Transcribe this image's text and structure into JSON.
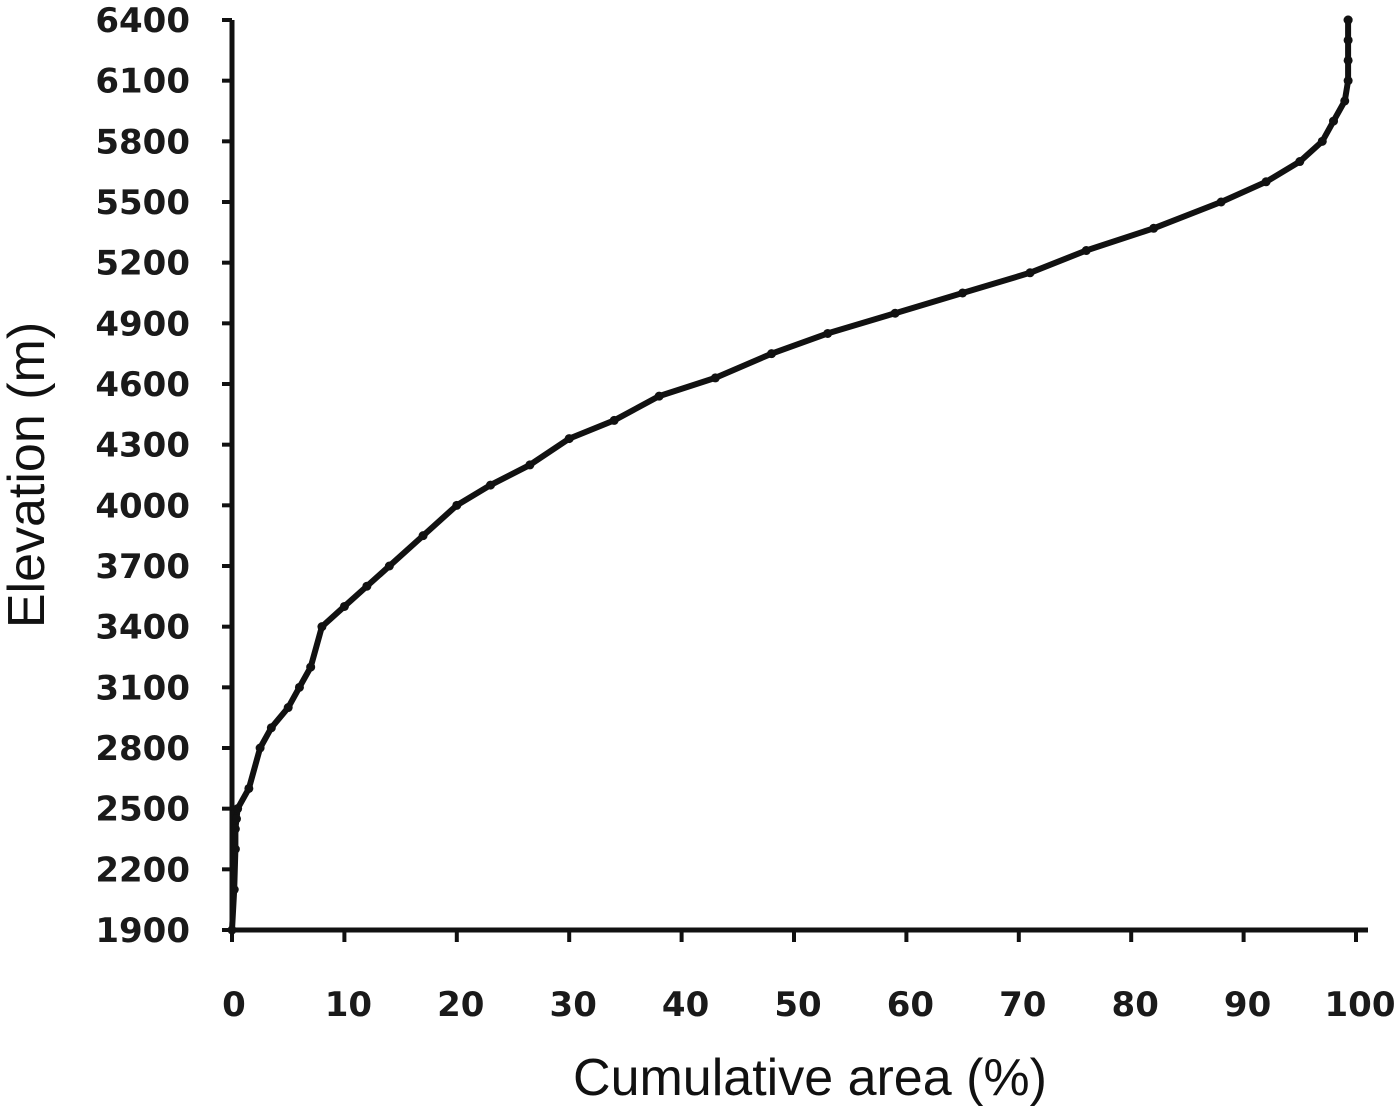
{
  "chart_data": {
    "type": "line",
    "title": "",
    "xlabel": "Cumulative area (%)",
    "ylabel": "Elevation (m)",
    "xlim": [
      0,
      100
    ],
    "ylim": [
      1900,
      6400
    ],
    "x_ticks": [
      "0",
      "10",
      "20",
      "30",
      "40",
      "50",
      "60",
      "70",
      "80",
      "90",
      "100"
    ],
    "y_ticks": [
      "6400",
      "6100",
      "5800",
      "5500",
      "5200",
      "4900",
      "4600",
      "4300",
      "4000",
      "3700",
      "3400",
      "3100",
      "2800",
      "2500",
      "2200",
      "1900"
    ],
    "grid": false,
    "legend": "none",
    "line_color": "#111111",
    "series": [
      {
        "x": [
          0,
          0.2,
          0.3,
          0.3,
          0.4,
          0.5,
          1.5,
          2.5,
          3.5,
          5,
          6,
          7,
          8,
          10,
          12,
          14,
          17,
          20,
          23,
          26.5,
          30,
          34,
          38,
          43,
          48,
          53,
          59,
          65,
          71,
          76,
          82,
          88,
          92,
          95,
          97,
          98,
          99,
          99.3,
          99.3,
          99.3,
          99.3,
          99.3
        ],
        "y": [
          1900,
          2100,
          2300,
          2400,
          2450,
          2500,
          2600,
          2800,
          2900,
          3000,
          3100,
          3200,
          3400,
          3500,
          3600,
          3700,
          3850,
          4000,
          4100,
          4200,
          4330,
          4420,
          4540,
          4630,
          4750,
          4850,
          4950,
          5050,
          5150,
          5260,
          5370,
          5500,
          5600,
          5700,
          5800,
          5900,
          6000,
          6100,
          6200,
          6300,
          6400,
          6400
        ]
      }
    ]
  }
}
